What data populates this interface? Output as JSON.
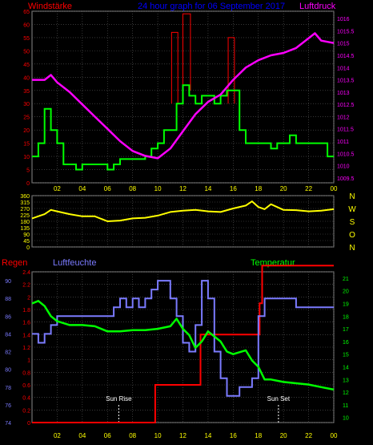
{
  "colors": {
    "background": "#000000",
    "grid": "#5a5a5a",
    "wind": "#00ff00",
    "gust": "#ff0000",
    "pressure": "#ff00ff",
    "direction": "#ffff00",
    "rain": "#ff0000",
    "humidity": "#7b7bff",
    "temperature": "#00ff00",
    "title": "#0000ff",
    "time_labels": "#ffff00",
    "markers": "#ffffff"
  },
  "header": {
    "left_label": "Windstärke",
    "title": "24 hour graph for 06 September 2017",
    "right_label": "Luftdruck"
  },
  "panel2": {
    "right_letters": [
      "N",
      "W",
      "S",
      "O",
      "N"
    ]
  },
  "panel3": {
    "rain_label": "Regen",
    "humidity_label": "Luftfeuchte",
    "temperature_label": "Temperatur",
    "sunrise_label": "Sun Rise",
    "sunset_label": "Sun Set"
  },
  "chart_data": [
    {
      "type": "line",
      "title": "24 hour graph for 06 September 2017",
      "x_ticks": [
        "02",
        "04",
        "06",
        "08",
        "10",
        "12",
        "14",
        "16",
        "18",
        "20",
        "22",
        "00"
      ],
      "x_range": [
        0,
        24
      ],
      "left_axis": {
        "label": "Windstärke",
        "range": [
          0,
          65
        ],
        "ticks": [
          0,
          5,
          10,
          15,
          20,
          25,
          30,
          35,
          40,
          45,
          50,
          55,
          60,
          65
        ]
      },
      "right_axis": {
        "label": "Luftdruck",
        "range": [
          1009.3,
          1016.3
        ],
        "ticks": [
          1009.5,
          1010,
          1010.5,
          1011,
          1011.5,
          1012,
          1012.5,
          1013,
          1013.5,
          1014,
          1014.5,
          1015,
          1015.5,
          1016
        ]
      },
      "grid": true,
      "series": [
        {
          "name": "wind",
          "axis": "left",
          "step": true,
          "x": [
            0,
            0.5,
            1,
            1.5,
            2,
            2.5,
            3,
            3.5,
            4,
            4.5,
            5,
            5.5,
            6,
            6.5,
            7,
            7.5,
            8,
            8.5,
            9,
            9.5,
            10,
            10.5,
            11,
            11.5,
            12,
            12.5,
            13,
            13.5,
            14,
            14.5,
            15,
            15.5,
            16,
            16.5,
            17,
            17.5,
            18,
            18.5,
            19,
            19.5,
            20,
            20.5,
            21,
            21.5,
            22,
            22.5,
            23,
            23.5,
            24
          ],
          "values": [
            10,
            15,
            28,
            20,
            15,
            7,
            7,
            5,
            7,
            7,
            7,
            7,
            5,
            7,
            9,
            9,
            9,
            9,
            10,
            13,
            15,
            20,
            20,
            30,
            37,
            33,
            30,
            33,
            33,
            30,
            33,
            35,
            35,
            20,
            15,
            15,
            15,
            15,
            13,
            15,
            15,
            18,
            15,
            15,
            15,
            15,
            15,
            10,
            10
          ]
        },
        {
          "name": "gust",
          "axis": "left",
          "segments": [
            {
              "x_start": 11.1,
              "x_end": 11.6,
              "top": 57,
              "base": 30
            },
            {
              "x_start": 12.0,
              "x_end": 12.6,
              "top": 64,
              "base": 35
            },
            {
              "x_start": 15.6,
              "x_end": 16.1,
              "top": 55,
              "base": 30
            }
          ]
        },
        {
          "name": "pressure",
          "axis": "right",
          "x": [
            0,
            1,
            1.5,
            2,
            3,
            4,
            5,
            6,
            7,
            8,
            9,
            10,
            11,
            12,
            13,
            14,
            15,
            16,
            17,
            18,
            19,
            20,
            21,
            22,
            22.5,
            23,
            24
          ],
          "values": [
            1013.5,
            1013.5,
            1013.7,
            1013.4,
            1013.0,
            1012.5,
            1012.0,
            1011.5,
            1011.0,
            1010.6,
            1010.4,
            1010.3,
            1010.7,
            1011.4,
            1012.1,
            1012.6,
            1012.9,
            1013.5,
            1014.0,
            1014.3,
            1014.5,
            1014.6,
            1014.8,
            1015.2,
            1015.4,
            1015.1,
            1015.0
          ]
        }
      ]
    },
    {
      "type": "line",
      "x_ticks": [
        "02",
        "04",
        "06",
        "08",
        "10",
        "12",
        "14",
        "16",
        "18",
        "20",
        "22",
        "00"
      ],
      "x_range": [
        0,
        24
      ],
      "left_axis": {
        "range": [
          0,
          360
        ],
        "ticks": [
          0,
          45,
          90,
          135,
          180,
          225,
          270,
          315,
          360
        ]
      },
      "grid": true,
      "series": [
        {
          "name": "direction",
          "x": [
            0,
            1,
            1.5,
            2,
            3,
            4,
            5,
            6,
            7,
            8,
            9,
            10,
            11,
            12,
            13,
            14,
            15,
            16,
            17,
            17.5,
            18,
            18.5,
            19,
            20,
            21,
            22,
            23,
            24
          ],
          "values": [
            200,
            230,
            260,
            250,
            230,
            215,
            215,
            180,
            185,
            200,
            205,
            220,
            245,
            255,
            260,
            250,
            245,
            270,
            290,
            320,
            280,
            265,
            300,
            260,
            258,
            250,
            255,
            265
          ]
        }
      ]
    },
    {
      "type": "line",
      "x_ticks": [
        "02",
        "04",
        "06",
        "08",
        "10",
        "12",
        "14",
        "16",
        "18",
        "20",
        "22",
        "00"
      ],
      "x_range": [
        0,
        24
      ],
      "axes": {
        "rain": {
          "label": "Regen",
          "range": [
            0,
            2.4
          ],
          "ticks": [
            0,
            0.2,
            0.4,
            0.6,
            0.8,
            1,
            1.2,
            1.4,
            1.6,
            1.8,
            2,
            2.2,
            2.4
          ]
        },
        "humidity": {
          "label": "Luftfeuchte",
          "range": [
            74,
            91
          ],
          "ticks": [
            74,
            76,
            78,
            80,
            82,
            84,
            86,
            88,
            90
          ]
        },
        "temperature": {
          "label": "Temperatur",
          "range": [
            9.6,
            21.5
          ],
          "ticks": [
            10,
            11,
            12,
            13,
            14,
            15,
            16,
            17,
            18,
            19,
            20,
            21
          ]
        }
      },
      "grid": true,
      "annotations": [
        {
          "text": "Sun Rise",
          "x": 6.9
        },
        {
          "text": "Sun Set",
          "x": 19.6
        }
      ],
      "series": [
        {
          "name": "rain",
          "axis": "rain",
          "step": true,
          "x": [
            0,
            9.8,
            11.8,
            13.4,
            18.1,
            18.3,
            24
          ],
          "values": [
            0,
            0.6,
            0.6,
            1.4,
            1.9,
            2.5,
            2.5
          ]
        },
        {
          "name": "humidity",
          "axis": "humidity",
          "step": true,
          "x": [
            0,
            0.5,
            1,
            1.5,
            2,
            3,
            4,
            5,
            6,
            6.5,
            7,
            7.5,
            8,
            8.5,
            9,
            9.5,
            10,
            10.5,
            11,
            11.5,
            12,
            12.5,
            13,
            13.5,
            14,
            14.5,
            15,
            15.5,
            16,
            16.5,
            17,
            17.5,
            18,
            18.5,
            19,
            20,
            21,
            22,
            23,
            24
          ],
          "values": [
            84,
            83,
            84,
            85,
            86,
            86,
            86,
            86,
            86,
            87,
            88,
            87,
            88,
            87,
            88,
            89,
            90,
            90,
            88,
            86,
            83,
            82,
            85,
            90,
            88,
            82,
            79,
            77,
            77,
            78,
            78,
            79,
            86,
            88,
            88,
            88,
            87,
            87,
            87,
            87
          ]
        },
        {
          "name": "temperature",
          "axis": "temperature",
          "x": [
            0,
            0.5,
            1,
            1.5,
            2,
            3,
            4,
            5,
            6,
            7,
            8,
            9,
            10,
            11,
            11.5,
            12,
            12.5,
            13,
            13.5,
            14,
            15,
            15.5,
            16,
            17,
            17.5,
            18,
            18.5,
            19,
            20,
            21,
            22,
            23,
            24
          ],
          "values": [
            19.0,
            19.2,
            18.8,
            18.0,
            17.6,
            17.3,
            17.3,
            17.2,
            16.8,
            16.8,
            16.9,
            16.9,
            17.0,
            17.2,
            17.8,
            17.0,
            16.5,
            15.5,
            16.0,
            16.8,
            16.0,
            15.2,
            15.0,
            15.3,
            14.5,
            14.0,
            13.0,
            13.0,
            12.8,
            12.7,
            12.6,
            12.4,
            12.2
          ]
        }
      ]
    }
  ]
}
